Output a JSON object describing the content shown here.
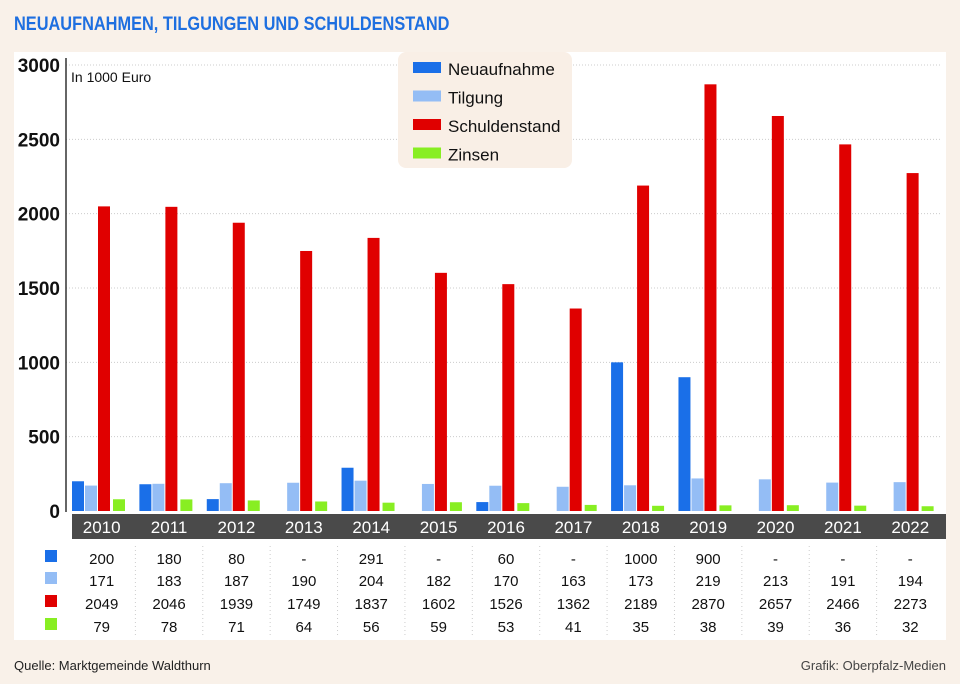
{
  "chart_data": {
    "type": "bar",
    "title": "NEUAUFNAHMEN, TILGUNGEN UND SCHULDENSTAND",
    "unit_label": "In 1000 Euro",
    "categories": [
      "2010",
      "2011",
      "2012",
      "2013",
      "2014",
      "2015",
      "2016",
      "2017",
      "2018",
      "2019",
      "2020",
      "2021",
      "2022"
    ],
    "ylim": [
      0,
      3000
    ],
    "yticks": [
      0,
      500,
      1000,
      1500,
      2000,
      2500,
      3000
    ],
    "grid": true,
    "legend_placement": "top-center",
    "series": [
      {
        "name": "Neuaufnahme",
        "color": "#1a6fe8",
        "values": [
          200,
          180,
          80,
          null,
          291,
          null,
          60,
          null,
          1000,
          900,
          null,
          null,
          null
        ]
      },
      {
        "name": "Tilgung",
        "color": "#94bdf5",
        "values": [
          171,
          183,
          187,
          190,
          204,
          182,
          170,
          163,
          173,
          219,
          213,
          191,
          194
        ]
      },
      {
        "name": "Schuldenstand",
        "color": "#e00000",
        "values": [
          2049,
          2046,
          1939,
          1749,
          1837,
          1602,
          1526,
          1362,
          2189,
          2870,
          2657,
          2466,
          2273
        ]
      },
      {
        "name": "Zinsen",
        "color": "#88ee22",
        "values": [
          79,
          78,
          71,
          64,
          56,
          59,
          53,
          41,
          35,
          38,
          39,
          36,
          32
        ]
      }
    ],
    "missing_label": "-"
  },
  "footer": {
    "source": "Quelle: Marktgemeinde Waldthurn",
    "credit": "Grafik: Oberpfalz-Medien"
  }
}
